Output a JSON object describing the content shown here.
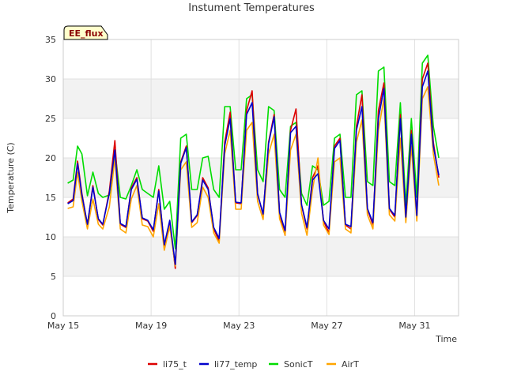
{
  "chart_data": {
    "type": "line",
    "title": "Instument Temperatures",
    "xlabel": "Time",
    "ylabel": "Temperature (C)",
    "badge": "EE_flux",
    "ylim": [
      0,
      35
    ],
    "yticks": [
      0,
      5,
      10,
      15,
      20,
      25,
      30,
      35
    ],
    "xlim": [
      0,
      18
    ],
    "xticks": [
      {
        "value": 0,
        "label": "May 15"
      },
      {
        "value": 4,
        "label": "May 19"
      },
      {
        "value": 8,
        "label": "May 23"
      },
      {
        "value": 12,
        "label": "May 27"
      },
      {
        "value": 16,
        "label": "May 31"
      }
    ],
    "grid": true,
    "legend_position": "bottom",
    "x_unit": "days since May 15",
    "series": [
      {
        "name": "li75_t",
        "color": "#dd0000",
        "x": [
          0.2,
          0.45,
          0.65,
          0.85,
          1.1,
          1.35,
          1.6,
          1.8,
          2.1,
          2.35,
          2.6,
          2.85,
          3.1,
          3.35,
          3.6,
          3.85,
          4.1,
          4.35,
          4.6,
          4.85,
          5.1,
          5.35,
          5.6,
          5.85,
          6.1,
          6.35,
          6.6,
          6.85,
          7.1,
          7.35,
          7.6,
          7.85,
          8.1,
          8.35,
          8.6,
          8.85,
          9.1,
          9.35,
          9.6,
          9.85,
          10.1,
          10.35,
          10.6,
          10.85,
          11.1,
          11.35,
          11.6,
          11.85,
          12.1,
          12.35,
          12.6,
          12.85,
          13.1,
          13.35,
          13.6,
          13.85,
          14.1,
          14.35,
          14.6,
          14.85,
          15.1,
          15.35,
          15.6,
          15.85,
          16.1,
          16.35,
          16.6,
          16.85,
          17.1
        ],
        "y": [
          14.3,
          14.8,
          19.6,
          15.5,
          11.5,
          16.5,
          12.2,
          11.5,
          15.8,
          22.2,
          11.6,
          11.2,
          16.2,
          17.5,
          12.3,
          12.0,
          10.7,
          16.0,
          8.8,
          12.0,
          6.0,
          19.5,
          21.5,
          11.8,
          12.7,
          17.5,
          16.2,
          11.0,
          9.5,
          22.0,
          25.8,
          14.3,
          14.2,
          26.0,
          28.5,
          15.5,
          12.8,
          22.0,
          25.5,
          13.0,
          10.2,
          23.5,
          26.2,
          14.0,
          11.0,
          17.5,
          19.0,
          12.0,
          10.5,
          21.5,
          22.5,
          11.5,
          11.0,
          24.0,
          28.0,
          13.5,
          11.5,
          26.0,
          29.5,
          13.5,
          12.5,
          25.5,
          12.3,
          23.5,
          12.5,
          30.0,
          32.0,
          22.0,
          17.5
        ]
      },
      {
        "name": "li77_temp",
        "color": "#0000cc",
        "x": [
          0.2,
          0.45,
          0.65,
          0.85,
          1.1,
          1.35,
          1.6,
          1.8,
          2.1,
          2.35,
          2.6,
          2.85,
          3.1,
          3.35,
          3.6,
          3.85,
          4.1,
          4.35,
          4.6,
          4.85,
          5.1,
          5.35,
          5.6,
          5.85,
          6.1,
          6.35,
          6.6,
          6.85,
          7.1,
          7.35,
          7.6,
          7.85,
          8.1,
          8.35,
          8.6,
          8.85,
          9.1,
          9.35,
          9.6,
          9.85,
          10.1,
          10.35,
          10.6,
          10.85,
          11.1,
          11.35,
          11.6,
          11.85,
          12.1,
          12.35,
          12.6,
          12.85,
          13.1,
          13.35,
          13.6,
          13.85,
          14.1,
          14.35,
          14.6,
          14.85,
          15.1,
          15.35,
          15.6,
          15.85,
          16.1,
          16.35,
          16.6,
          16.85,
          17.1
        ],
        "y": [
          14.2,
          14.6,
          19.3,
          15.3,
          11.6,
          16.3,
          12.3,
          11.6,
          15.5,
          21.0,
          11.7,
          11.3,
          16.0,
          17.3,
          12.4,
          12.1,
          10.9,
          15.8,
          9.0,
          12.1,
          6.5,
          19.3,
          21.3,
          11.9,
          12.8,
          17.2,
          16.0,
          11.2,
          9.8,
          21.5,
          25.0,
          14.4,
          14.3,
          25.5,
          27.0,
          15.4,
          12.9,
          21.8,
          25.2,
          13.1,
          10.8,
          23.2,
          24.0,
          14.1,
          11.2,
          17.2,
          18.0,
          12.1,
          11.0,
          21.2,
          22.2,
          11.6,
          11.3,
          23.5,
          26.5,
          13.6,
          11.8,
          25.0,
          28.8,
          13.6,
          12.7,
          25.0,
          12.5,
          23.0,
          12.7,
          29.0,
          31.0,
          21.5,
          17.8
        ]
      },
      {
        "name": "SonicT",
        "color": "#00dd00",
        "x": [
          0.2,
          0.45,
          0.65,
          0.85,
          1.1,
          1.35,
          1.6,
          1.8,
          2.1,
          2.35,
          2.6,
          2.85,
          3.1,
          3.35,
          3.6,
          3.85,
          4.1,
          4.35,
          4.6,
          4.85,
          5.1,
          5.35,
          5.6,
          5.85,
          6.1,
          6.35,
          6.6,
          6.85,
          7.1,
          7.35,
          7.6,
          7.85,
          8.1,
          8.35,
          8.6,
          8.85,
          9.1,
          9.35,
          9.6,
          9.85,
          10.1,
          10.35,
          10.6,
          10.85,
          11.1,
          11.35,
          11.6,
          11.85,
          12.1,
          12.35,
          12.6,
          12.85,
          13.1,
          13.35,
          13.6,
          13.85,
          14.1,
          14.35,
          14.6,
          14.85,
          15.1,
          15.35,
          15.6,
          15.85,
          16.1,
          16.35,
          16.6,
          16.85,
          17.1
        ],
        "y": [
          16.8,
          17.2,
          21.5,
          20.5,
          15.2,
          18.2,
          15.5,
          15.0,
          15.3,
          21.0,
          15.0,
          14.8,
          16.5,
          18.5,
          16.0,
          15.5,
          15.0,
          19.0,
          13.5,
          14.5,
          8.5,
          22.5,
          23.0,
          16.0,
          16.0,
          20.0,
          20.2,
          16.0,
          15.0,
          26.5,
          26.5,
          18.5,
          18.5,
          27.5,
          28.0,
          18.5,
          17.0,
          26.5,
          26.0,
          16.0,
          15.0,
          24.0,
          24.5,
          15.5,
          14.0,
          19.0,
          18.5,
          14.0,
          14.5,
          22.5,
          23.0,
          15.0,
          15.0,
          28.0,
          28.5,
          17.0,
          16.5,
          31.0,
          31.5,
          17.0,
          16.5,
          27.0,
          14.0,
          25.0,
          15.0,
          32.0,
          33.0,
          24.0,
          20.0
        ]
      },
      {
        "name": "AirT",
        "color": "#ffa500",
        "x": [
          0.2,
          0.45,
          0.65,
          0.85,
          1.1,
          1.35,
          1.6,
          1.8,
          2.1,
          2.35,
          2.6,
          2.85,
          3.1,
          3.35,
          3.6,
          3.85,
          4.1,
          4.35,
          4.6,
          4.85,
          5.1,
          5.35,
          5.6,
          5.85,
          6.1,
          6.35,
          6.6,
          6.85,
          7.1,
          7.35,
          7.6,
          7.85,
          8.1,
          8.35,
          8.6,
          8.85,
          9.1,
          9.35,
          9.6,
          9.85,
          10.1,
          10.35,
          10.6,
          10.85,
          11.1,
          11.35,
          11.6,
          11.85,
          12.1,
          12.35,
          12.6,
          12.85,
          13.1,
          13.35,
          13.6,
          13.85,
          14.1,
          14.35,
          14.6,
          14.85,
          15.1,
          15.35,
          15.6,
          15.85,
          16.1,
          16.35,
          16.6,
          16.85,
          17.1
        ],
        "y": [
          13.6,
          13.8,
          18.2,
          14.5,
          11.0,
          14.8,
          11.6,
          11.0,
          13.8,
          20.0,
          11.0,
          10.5,
          14.8,
          16.5,
          11.5,
          11.3,
          10.0,
          14.2,
          8.3,
          11.3,
          6.3,
          18.5,
          19.5,
          11.2,
          11.8,
          16.3,
          15.0,
          10.5,
          9.2,
          20.5,
          23.5,
          13.5,
          13.5,
          23.5,
          24.5,
          14.5,
          12.2,
          20.5,
          23.0,
          12.3,
          10.2,
          21.0,
          23.0,
          13.0,
          10.2,
          16.0,
          20.0,
          11.5,
          10.3,
          19.5,
          20.0,
          11.0,
          10.5,
          22.0,
          24.8,
          12.8,
          11.0,
          23.5,
          27.5,
          12.8,
          12.0,
          22.5,
          11.8,
          21.5,
          12.0,
          27.5,
          29.0,
          20.5,
          16.5
        ]
      }
    ]
  }
}
